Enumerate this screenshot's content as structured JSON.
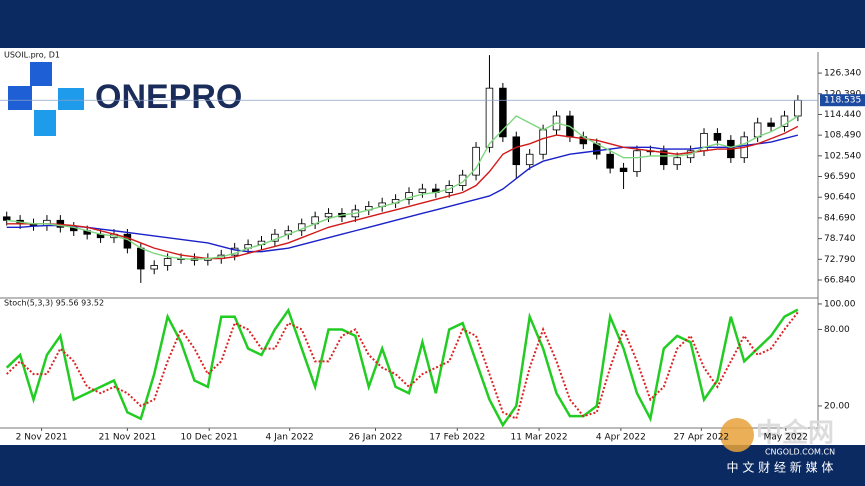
{
  "logo": "ONEPRO",
  "watermark": {
    "name": "中金网",
    "url": "CNGOLD.COM.CN",
    "tagline": "中 文 财 经 新 媒 体"
  },
  "chart_data": [
    {
      "type": "candlestick",
      "title": "USOIL.pro, D1",
      "open": [
        85,
        84,
        83,
        82.5,
        84,
        82,
        81,
        80,
        79,
        80,
        76,
        70,
        71,
        73,
        73,
        72.5,
        73,
        74,
        76,
        77,
        78,
        80,
        81,
        83,
        85,
        86,
        85,
        87,
        88,
        89,
        90,
        92,
        93,
        92,
        94,
        97,
        105,
        122,
        108,
        100,
        103,
        110,
        114,
        108,
        106,
        103,
        99,
        98,
        104,
        104,
        100,
        102,
        104,
        109,
        107,
        102,
        108,
        112,
        111,
        114
      ],
      "high": [
        86.5,
        85.5,
        84.5,
        85.5,
        85.5,
        83.5,
        82.5,
        81.5,
        81.5,
        81.5,
        77.5,
        72.5,
        74.5,
        74.5,
        74.5,
        74.5,
        75.5,
        77.5,
        78.5,
        79.5,
        81.5,
        82.5,
        84.5,
        86.5,
        87.5,
        87.5,
        88.5,
        89.5,
        90.5,
        91.5,
        93.5,
        94.5,
        94.5,
        95.5,
        98.5,
        106.5,
        131.5,
        123.5,
        109.5,
        104.5,
        111.5,
        115.5,
        115.5,
        109.5,
        107.5,
        104.5,
        100.5,
        105.5,
        105.5,
        105.5,
        103.5,
        105.5,
        110.5,
        110.5,
        108.5,
        109.5,
        113.5,
        113.5,
        115.5,
        120
      ],
      "low": [
        82.5,
        81.5,
        81,
        81,
        80.5,
        79.5,
        78.5,
        77.5,
        77.5,
        74.5,
        66,
        68.5,
        69.5,
        71.5,
        71,
        71,
        71.5,
        72.5,
        74.5,
        75.5,
        76.5,
        78.5,
        79.5,
        81.5,
        83.5,
        83.5,
        83.5,
        85.5,
        86.5,
        87.5,
        88.5,
        90.5,
        90.5,
        90.5,
        92.5,
        95.5,
        103.5,
        106.5,
        96,
        98.5,
        101.5,
        108.5,
        106.5,
        104.5,
        101.5,
        97.5,
        93,
        96.5,
        102.5,
        98.5,
        98.5,
        100.5,
        102.5,
        105.5,
        100.5,
        100.5,
        106.5,
        109.5,
        109.5,
        112.5
      ],
      "close": [
        84,
        83,
        82.5,
        84,
        82,
        81,
        80,
        79,
        80,
        76,
        70,
        71,
        73,
        73,
        72.5,
        73,
        74,
        76,
        77,
        78,
        80,
        81,
        83,
        85,
        86,
        85,
        87,
        88,
        89,
        90,
        92,
        93,
        92,
        94,
        97,
        105,
        122,
        108,
        100,
        103,
        110,
        114,
        108,
        106,
        103,
        99,
        98,
        104,
        104,
        100,
        102,
        104,
        109,
        107,
        102,
        108,
        112,
        111,
        114,
        118.5
      ],
      "series": [
        {
          "color": "#1a22c8",
          "values": [
            82,
            82,
            82.3,
            82.5,
            82.5,
            82.3,
            82,
            81.5,
            81,
            80.5,
            80,
            79.5,
            79,
            78.5,
            78,
            77.5,
            76.5,
            75.5,
            75,
            75,
            75.5,
            76,
            77,
            78,
            79,
            80,
            81,
            82,
            83,
            84,
            85,
            86,
            87,
            88,
            89,
            90,
            91,
            93,
            96,
            99,
            101,
            102,
            103,
            103.5,
            104,
            104.5,
            105,
            105,
            105,
            104.5,
            104.5,
            104.5,
            105,
            105,
            105,
            105.5,
            106,
            106.5,
            107.5,
            108.5
          ]
        },
        {
          "color": "#d11a1a",
          "values": [
            83,
            83,
            83,
            83,
            82.8,
            82.5,
            82,
            81,
            80,
            79,
            77.5,
            76,
            75,
            74,
            73.5,
            73,
            73,
            73.5,
            74.5,
            75.5,
            76.5,
            77.5,
            79,
            80.5,
            82,
            83,
            84,
            85,
            86,
            87,
            88,
            89,
            90,
            91,
            92,
            94,
            98,
            103,
            105,
            106,
            107.5,
            108.5,
            108,
            107.5,
            107,
            106,
            105,
            104.5,
            104,
            103.5,
            103,
            103.5,
            104,
            104.5,
            104.5,
            105,
            106,
            107.5,
            109,
            111
          ]
        },
        {
          "color": "#7ed67e",
          "values": [
            84,
            83.5,
            83,
            83,
            82.5,
            82,
            81,
            80,
            79.5,
            78.5,
            76,
            74.5,
            73.5,
            73,
            72.8,
            73,
            73.5,
            74.5,
            76,
            77,
            78.5,
            80,
            81.5,
            83,
            84.5,
            85.5,
            86,
            87,
            88,
            89,
            90.5,
            91.5,
            92,
            93,
            95,
            99,
            106,
            110,
            114,
            112,
            110,
            112,
            111,
            108,
            106,
            104,
            102,
            102,
            102.5,
            102.5,
            102.5,
            103,
            105,
            106,
            105,
            106,
            108,
            109.5,
            111.5,
            114
          ]
        }
      ],
      "last_price": {
        "value": 118.535,
        "label": "118.535"
      },
      "xlim": [
        -0.5,
        60.5
      ],
      "ylim": [
        61.95,
        132.4
      ],
      "yticks": [
        {
          "value": 126.34,
          "label": "126.340"
        },
        {
          "value": 120.39,
          "label": "120.390"
        },
        {
          "value": 114.44,
          "label": "114.440"
        },
        {
          "value": 108.49,
          "label": "108.490"
        },
        {
          "value": 102.54,
          "label": "102.540"
        },
        {
          "value": 96.59,
          "label": "96.590"
        },
        {
          "value": 90.64,
          "label": "90.640"
        },
        {
          "value": 84.69,
          "label": "84.690"
        },
        {
          "value": 78.74,
          "label": "78.740"
        },
        {
          "value": 72.79,
          "label": "72.790"
        },
        {
          "value": 66.84,
          "label": "66.840"
        }
      ]
    },
    {
      "type": "line",
      "title": "Stoch(5,3,3) 95.56 93.52",
      "series": [
        {
          "color": "#22cc22",
          "values": [
            50,
            60,
            25,
            60,
            75,
            25,
            30,
            35,
            40,
            15,
            10,
            45,
            90,
            70,
            40,
            35,
            90,
            90,
            65,
            60,
            80,
            95,
            65,
            35,
            80,
            80,
            75,
            35,
            65,
            35,
            30,
            70,
            30,
            80,
            85,
            55,
            25,
            5,
            20,
            90,
            65,
            30,
            12,
            12,
            20,
            90,
            65,
            30,
            10,
            65,
            75,
            70,
            25,
            40,
            90,
            55,
            65,
            75,
            90,
            95.56
          ]
        },
        {
          "color": "#dd2222",
          "dashed": true,
          "values": [
            45,
            55,
            45,
            45,
            65,
            55,
            35,
            30,
            35,
            30,
            20,
            25,
            55,
            80,
            65,
            45,
            55,
            85,
            80,
            65,
            65,
            85,
            80,
            55,
            55,
            75,
            80,
            60,
            50,
            45,
            35,
            45,
            50,
            55,
            80,
            75,
            45,
            15,
            10,
            50,
            80,
            55,
            25,
            12,
            15,
            50,
            80,
            55,
            25,
            35,
            65,
            75,
            50,
            35,
            55,
            75,
            60,
            65,
            80,
            93.52
          ]
        }
      ],
      "xlim": [
        -0.5,
        60.5
      ],
      "ylim": [
        2.7,
        103.1
      ],
      "yticks": [
        {
          "value": 100,
          "label": "100.00"
        },
        {
          "value": 80,
          "label": "80.00"
        },
        {
          "value": 20,
          "label": "20.00"
        }
      ],
      "xticks": [
        {
          "value": 2.6,
          "label": "2 Nov 2021"
        },
        {
          "value": 9,
          "label": "21 Nov 2021"
        },
        {
          "value": 15.1,
          "label": "10 Dec 2021"
        },
        {
          "value": 21.1,
          "label": "4 Jan 2022"
        },
        {
          "value": 27.5,
          "label": "26 Jan 2022"
        },
        {
          "value": 33.6,
          "label": "17 Feb 2022"
        },
        {
          "value": 39.7,
          "label": "11 Mar 2022"
        },
        {
          "value": 45.8,
          "label": "4 Apr 2022"
        },
        {
          "value": 51.8,
          "label": "27 Apr 2022"
        },
        {
          "value": 58.1,
          "label": "May 2022"
        }
      ]
    }
  ]
}
